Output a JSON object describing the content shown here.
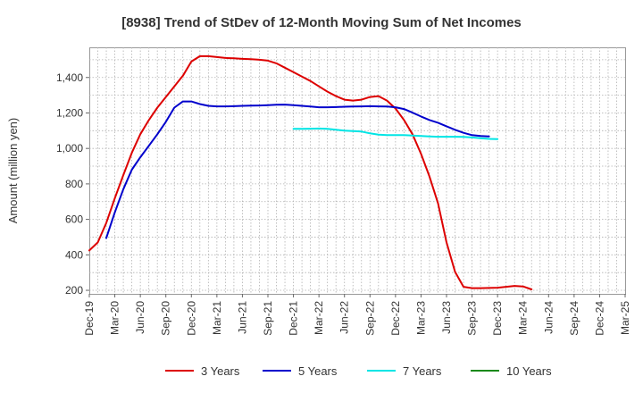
{
  "chart_data": {
    "type": "line",
    "title": "[8938]  Trend of StDev of 12-Month Moving Sum of Net Incomes",
    "xlabel": "",
    "ylabel": "Amount (million yen)",
    "ylim": [
      180,
      1570
    ],
    "yticks": [
      200,
      400,
      600,
      800,
      1000,
      1200,
      1400
    ],
    "ytick_labels": [
      "200",
      "400",
      "600",
      "800",
      "1,000",
      "1,200",
      "1,400"
    ],
    "xticks": [
      "Dec-19",
      "Mar-20",
      "Jun-20",
      "Sep-20",
      "Dec-20",
      "Mar-21",
      "Jun-21",
      "Sep-21",
      "Dec-21",
      "Mar-22",
      "Jun-22",
      "Sep-22",
      "Dec-22",
      "Mar-23",
      "Jun-23",
      "Sep-23",
      "Dec-23",
      "Mar-24",
      "Jun-24",
      "Sep-24",
      "Dec-24",
      "Mar-25"
    ],
    "grid": true,
    "legend_position": "bottom",
    "series": [
      {
        "name": "3 Years",
        "color": "#dd0000",
        "start": 0,
        "values": [
          425,
          470,
          580,
          720,
          850,
          975,
          1080,
          1160,
          1230,
          1290,
          1350,
          1410,
          1490,
          1520,
          1520,
          1515,
          1510,
          1508,
          1505,
          1503,
          1500,
          1495,
          1480,
          1455,
          1430,
          1405,
          1380,
          1350,
          1320,
          1295,
          1275,
          1270,
          1275,
          1290,
          1295,
          1270,
          1225,
          1160,
          1080,
          970,
          840,
          690,
          470,
          305,
          220,
          212,
          212,
          213,
          215,
          220,
          225,
          222,
          205
        ]
      },
      {
        "name": "5 Years",
        "color": "#0000cc",
        "start": 2,
        "values": [
          495,
          640,
          770,
          880,
          950,
          1015,
          1080,
          1150,
          1230,
          1265,
          1265,
          1250,
          1240,
          1237,
          1237,
          1238,
          1240,
          1241,
          1242,
          1244,
          1246,
          1247,
          1244,
          1240,
          1236,
          1232,
          1232,
          1233,
          1235,
          1236,
          1237,
          1238,
          1237,
          1236,
          1232,
          1222,
          1202,
          1180,
          1160,
          1145,
          1125,
          1105,
          1088,
          1075,
          1070,
          1068
        ]
      },
      {
        "name": "7 Years",
        "color": "#00e5e5",
        "start": 24,
        "values": [
          1110,
          1110,
          1111,
          1112,
          1110,
          1105,
          1100,
          1098,
          1095,
          1085,
          1078,
          1075,
          1075,
          1075,
          1073,
          1070,
          1068,
          1066,
          1066,
          1066,
          1065,
          1062,
          1058,
          1054,
          1053
        ]
      },
      {
        "name": "10 Years",
        "color": "#1a8a1a",
        "start": 0,
        "values": []
      }
    ]
  }
}
